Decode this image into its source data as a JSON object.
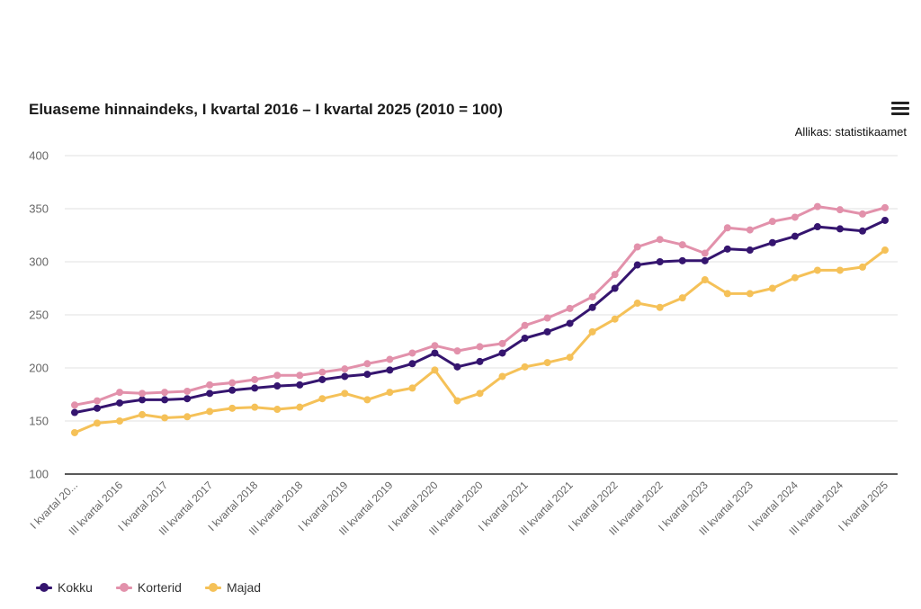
{
  "title": "Eluaseme hinnaindeks, I kvartal 2016 – I kvartal 2025 (2010 = 100)",
  "source": "Allikas: statistikaamet",
  "menu_icon": "hamburger-menu-icon",
  "colors": {
    "Kokku": "#35156f",
    "Korterid": "#e291ab",
    "Majad": "#f5c158",
    "grid": "#e2e2e2",
    "axis": "#222222"
  },
  "chart_data": {
    "type": "line",
    "title": "Eluaseme hinnaindeks, I kvartal 2016 – I kvartal 2025 (2010 = 100)",
    "xlabel": "",
    "ylabel": "",
    "ylim": [
      100,
      400
    ],
    "yticks": [
      100,
      150,
      200,
      250,
      300,
      350,
      400
    ],
    "grid": true,
    "legend": "bottom-left",
    "x": [
      "I kvartal 2016",
      "II kvartal 2016",
      "III kvartal 2016",
      "IV kvartal 2016",
      "I kvartal 2017",
      "II kvartal 2017",
      "III kvartal 2017",
      "IV kvartal 2017",
      "I kvartal 2018",
      "II kvartal 2018",
      "III kvartal 2018",
      "IV kvartal 2018",
      "I kvartal 2019",
      "II kvartal 2019",
      "III kvartal 2019",
      "IV kvartal 2019",
      "I kvartal 2020",
      "II kvartal 2020",
      "III kvartal 2020",
      "IV kvartal 2020",
      "I kvartal 2021",
      "II kvartal 2021",
      "III kvartal 2021",
      "IV kvartal 2021",
      "I kvartal 2022",
      "II kvartal 2022",
      "III kvartal 2022",
      "IV kvartal 2022",
      "I kvartal 2023",
      "II kvartal 2023",
      "III kvartal 2023",
      "IV kvartal 2023",
      "I kvartal 2024",
      "II kvartal 2024",
      "III kvartal 2024",
      "IV kvartal 2024",
      "I kvartal 2025"
    ],
    "x_tick_labels_shown": [
      "I kvartal 20...",
      "III kvartal 2016",
      "I kvartal 2017",
      "III kvartal 2017",
      "I kvartal 2018",
      "III kvartal 2018",
      "I kvartal 2019",
      "III kvartal 2019",
      "I kvartal 2020",
      "III kvartal 2020",
      "I kvartal 2021",
      "III kvartal 2021",
      "I kvartal 2022",
      "III kvartal 2022",
      "I kvartal 2023",
      "III kvartal 2023",
      "I kvartal 2024",
      "III kvartal 2024",
      "I kvartal 2025"
    ],
    "series": [
      {
        "name": "Kokku",
        "values": [
          158,
          162,
          167,
          170,
          170,
          171,
          176,
          179,
          181,
          183,
          184,
          189,
          192,
          194,
          198,
          204,
          214,
          201,
          206,
          214,
          228,
          234,
          242,
          257,
          275,
          297,
          300,
          301,
          301,
          312,
          311,
          318,
          324,
          333,
          331,
          329,
          339
        ]
      },
      {
        "name": "Korterid",
        "values": [
          165,
          169,
          177,
          176,
          177,
          178,
          184,
          186,
          189,
          193,
          193,
          196,
          199,
          204,
          208,
          214,
          221,
          216,
          220,
          223,
          240,
          247,
          256,
          267,
          288,
          314,
          321,
          316,
          308,
          332,
          330,
          338,
          342,
          352,
          349,
          345,
          351
        ]
      },
      {
        "name": "Majad",
        "values": [
          139,
          148,
          150,
          156,
          153,
          154,
          159,
          162,
          163,
          161,
          163,
          171,
          176,
          170,
          177,
          181,
          198,
          169,
          176,
          192,
          201,
          205,
          210,
          234,
          246,
          261,
          257,
          266,
          283,
          270,
          270,
          275,
          285,
          292,
          292,
          295,
          311
        ]
      }
    ]
  }
}
